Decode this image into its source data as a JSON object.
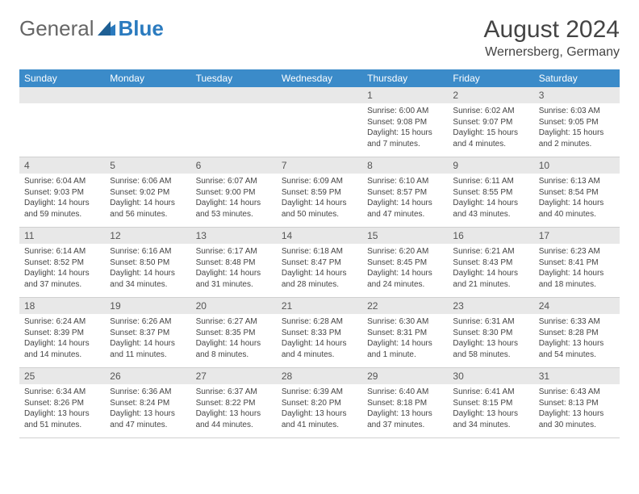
{
  "logo": {
    "general": "General",
    "blue": "Blue"
  },
  "title": "August 2024",
  "location": "Wernersberg, Germany",
  "weekdays": [
    "Sunday",
    "Monday",
    "Tuesday",
    "Wednesday",
    "Thursday",
    "Friday",
    "Saturday"
  ],
  "colors": {
    "header_bg": "#3b8bc9",
    "header_text": "#ffffff",
    "daynum_bg": "#e8e8e8",
    "text": "#444444",
    "logo_blue": "#2b7bbf"
  },
  "weeks": [
    [
      null,
      null,
      null,
      null,
      {
        "n": "1",
        "sr": "6:00 AM",
        "ss": "9:08 PM",
        "dl": "15 hours and 7 minutes."
      },
      {
        "n": "2",
        "sr": "6:02 AM",
        "ss": "9:07 PM",
        "dl": "15 hours and 4 minutes."
      },
      {
        "n": "3",
        "sr": "6:03 AM",
        "ss": "9:05 PM",
        "dl": "15 hours and 2 minutes."
      }
    ],
    [
      {
        "n": "4",
        "sr": "6:04 AM",
        "ss": "9:03 PM",
        "dl": "14 hours and 59 minutes."
      },
      {
        "n": "5",
        "sr": "6:06 AM",
        "ss": "9:02 PM",
        "dl": "14 hours and 56 minutes."
      },
      {
        "n": "6",
        "sr": "6:07 AM",
        "ss": "9:00 PM",
        "dl": "14 hours and 53 minutes."
      },
      {
        "n": "7",
        "sr": "6:09 AM",
        "ss": "8:59 PM",
        "dl": "14 hours and 50 minutes."
      },
      {
        "n": "8",
        "sr": "6:10 AM",
        "ss": "8:57 PM",
        "dl": "14 hours and 47 minutes."
      },
      {
        "n": "9",
        "sr": "6:11 AM",
        "ss": "8:55 PM",
        "dl": "14 hours and 43 minutes."
      },
      {
        "n": "10",
        "sr": "6:13 AM",
        "ss": "8:54 PM",
        "dl": "14 hours and 40 minutes."
      }
    ],
    [
      {
        "n": "11",
        "sr": "6:14 AM",
        "ss": "8:52 PM",
        "dl": "14 hours and 37 minutes."
      },
      {
        "n": "12",
        "sr": "6:16 AM",
        "ss": "8:50 PM",
        "dl": "14 hours and 34 minutes."
      },
      {
        "n": "13",
        "sr": "6:17 AM",
        "ss": "8:48 PM",
        "dl": "14 hours and 31 minutes."
      },
      {
        "n": "14",
        "sr": "6:18 AM",
        "ss": "8:47 PM",
        "dl": "14 hours and 28 minutes."
      },
      {
        "n": "15",
        "sr": "6:20 AM",
        "ss": "8:45 PM",
        "dl": "14 hours and 24 minutes."
      },
      {
        "n": "16",
        "sr": "6:21 AM",
        "ss": "8:43 PM",
        "dl": "14 hours and 21 minutes."
      },
      {
        "n": "17",
        "sr": "6:23 AM",
        "ss": "8:41 PM",
        "dl": "14 hours and 18 minutes."
      }
    ],
    [
      {
        "n": "18",
        "sr": "6:24 AM",
        "ss": "8:39 PM",
        "dl": "14 hours and 14 minutes."
      },
      {
        "n": "19",
        "sr": "6:26 AM",
        "ss": "8:37 PM",
        "dl": "14 hours and 11 minutes."
      },
      {
        "n": "20",
        "sr": "6:27 AM",
        "ss": "8:35 PM",
        "dl": "14 hours and 8 minutes."
      },
      {
        "n": "21",
        "sr": "6:28 AM",
        "ss": "8:33 PM",
        "dl": "14 hours and 4 minutes."
      },
      {
        "n": "22",
        "sr": "6:30 AM",
        "ss": "8:31 PM",
        "dl": "14 hours and 1 minute."
      },
      {
        "n": "23",
        "sr": "6:31 AM",
        "ss": "8:30 PM",
        "dl": "13 hours and 58 minutes."
      },
      {
        "n": "24",
        "sr": "6:33 AM",
        "ss": "8:28 PM",
        "dl": "13 hours and 54 minutes."
      }
    ],
    [
      {
        "n": "25",
        "sr": "6:34 AM",
        "ss": "8:26 PM",
        "dl": "13 hours and 51 minutes."
      },
      {
        "n": "26",
        "sr": "6:36 AM",
        "ss": "8:24 PM",
        "dl": "13 hours and 47 minutes."
      },
      {
        "n": "27",
        "sr": "6:37 AM",
        "ss": "8:22 PM",
        "dl": "13 hours and 44 minutes."
      },
      {
        "n": "28",
        "sr": "6:39 AM",
        "ss": "8:20 PM",
        "dl": "13 hours and 41 minutes."
      },
      {
        "n": "29",
        "sr": "6:40 AM",
        "ss": "8:18 PM",
        "dl": "13 hours and 37 minutes."
      },
      {
        "n": "30",
        "sr": "6:41 AM",
        "ss": "8:15 PM",
        "dl": "13 hours and 34 minutes."
      },
      {
        "n": "31",
        "sr": "6:43 AM",
        "ss": "8:13 PM",
        "dl": "13 hours and 30 minutes."
      }
    ]
  ],
  "labels": {
    "sunrise": "Sunrise: ",
    "sunset": "Sunset: ",
    "daylight": "Daylight: "
  }
}
